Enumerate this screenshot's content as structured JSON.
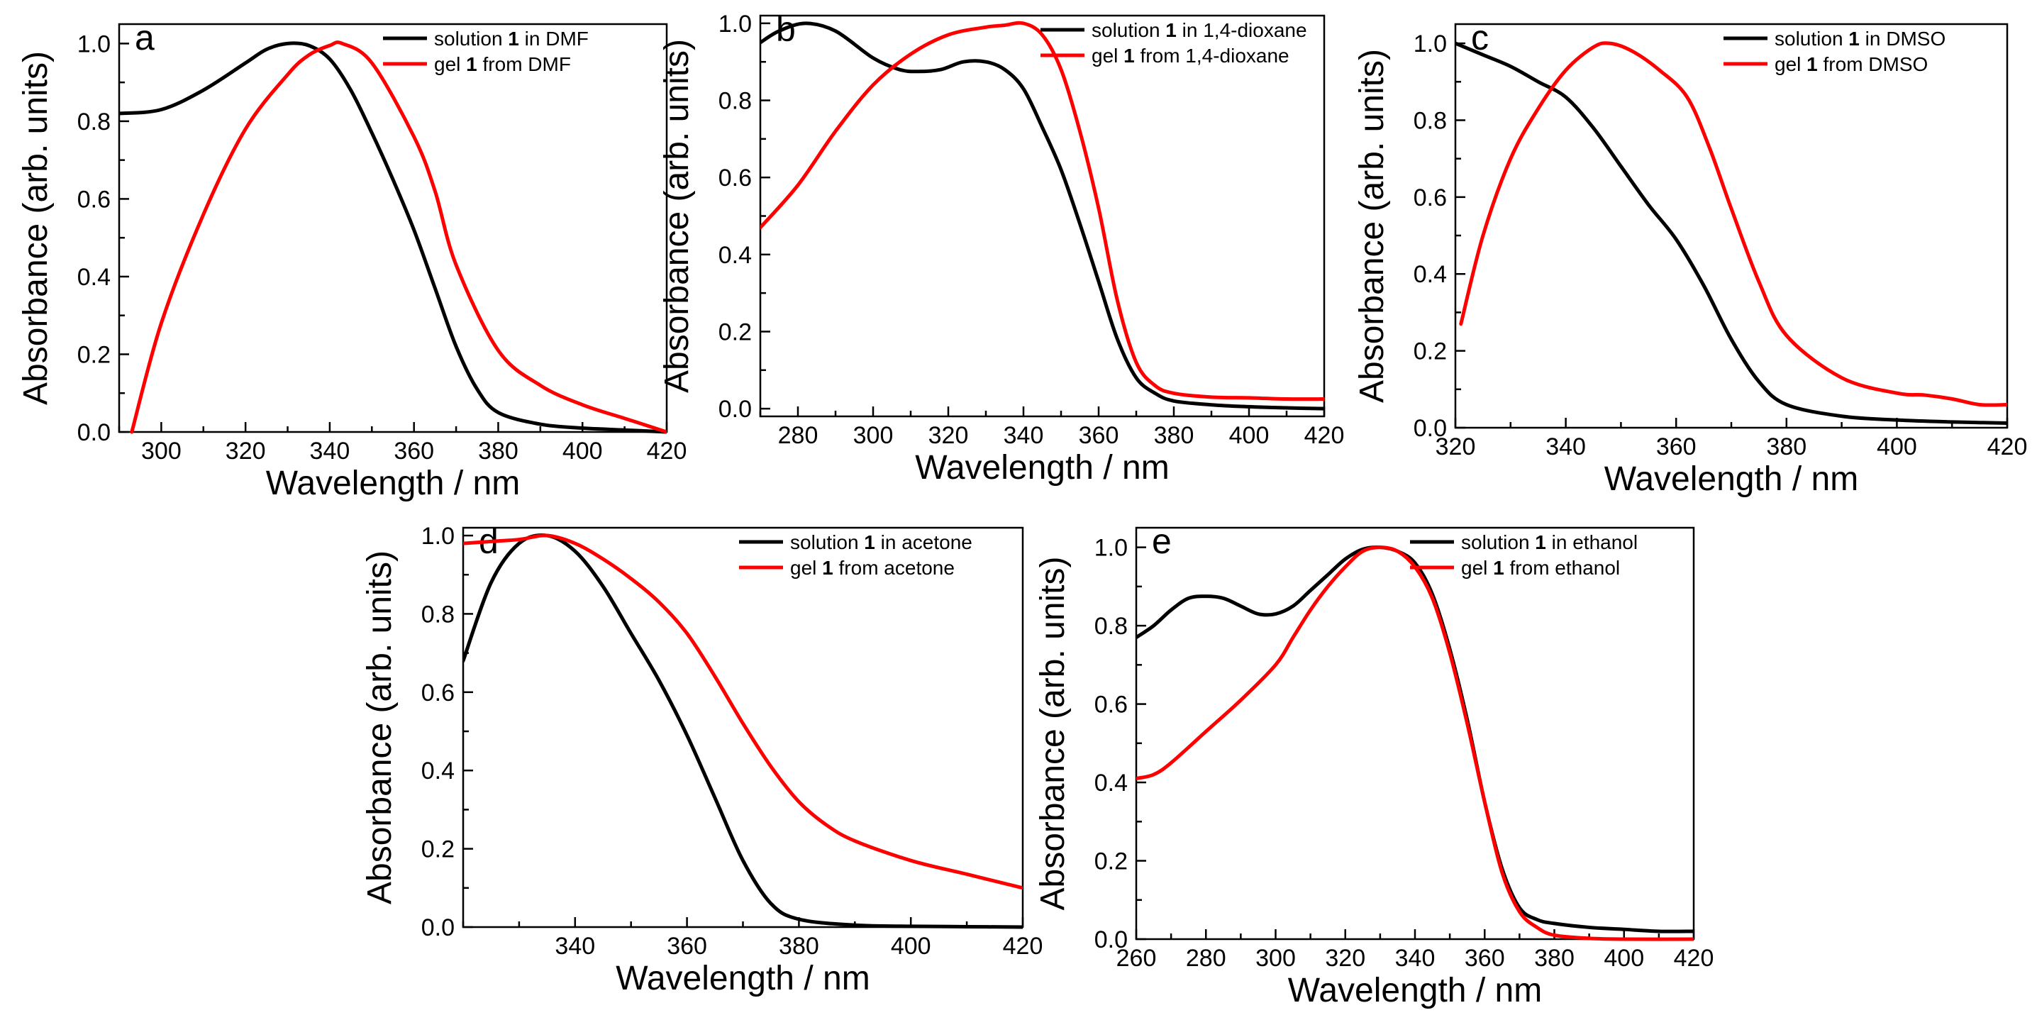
{
  "chart_data": [
    {
      "id": "a",
      "type": "line",
      "panel_label": "a",
      "xlabel": "Wavelength / nm",
      "ylabel": "Absorbance (arb. units)",
      "xlim": [
        290,
        420
      ],
      "ylim": [
        0,
        1.05
      ],
      "xticks": [
        300,
        320,
        340,
        360,
        380,
        400,
        420
      ],
      "xtick_labels": [
        "300",
        "320",
        "340",
        "360",
        "380",
        "400",
        "420"
      ],
      "yticks": [
        0,
        0.2,
        0.4,
        0.6,
        0.8,
        1.0
      ],
      "ytick_labels": [
        "0.0",
        "0.2",
        "0.4",
        "0.6",
        "0.8",
        "1.0"
      ],
      "legend_position": "top-right",
      "series": [
        {
          "name": "solution 1 in DMF",
          "legend_prefix": "solution ",
          "legend_bold": "1",
          "legend_suffix": " in DMF",
          "color": "#000000",
          "x": [
            290,
            300,
            310,
            320,
            325,
            330,
            335,
            340,
            345,
            350,
            355,
            360,
            365,
            370,
            375,
            380,
            390,
            400,
            410,
            420
          ],
          "y": [
            0.82,
            0.83,
            0.88,
            0.95,
            0.985,
            1.0,
            0.995,
            0.96,
            0.88,
            0.77,
            0.65,
            0.52,
            0.37,
            0.22,
            0.11,
            0.05,
            0.02,
            0.01,
            0.005,
            0.0
          ]
        },
        {
          "name": "gel 1 from DMF",
          "legend_prefix": "gel ",
          "legend_bold": "1",
          "legend_suffix": " from DMF",
          "color": "#ff0000",
          "x": [
            293,
            300,
            310,
            320,
            330,
            335,
            340,
            343,
            350,
            360,
            365,
            370,
            380,
            390,
            400,
            410,
            420
          ],
          "y": [
            0.0,
            0.28,
            0.56,
            0.78,
            0.92,
            0.97,
            0.995,
            1.0,
            0.95,
            0.76,
            0.62,
            0.43,
            0.21,
            0.12,
            0.07,
            0.035,
            0.0
          ]
        }
      ]
    },
    {
      "id": "b",
      "type": "line",
      "panel_label": "b",
      "xlabel": "Wavelength / nm",
      "ylabel": "Absorbance (arb. units)",
      "xlim": [
        270,
        420
      ],
      "ylim": [
        -0.02,
        1.02
      ],
      "xticks": [
        280,
        300,
        320,
        340,
        360,
        380,
        400,
        420
      ],
      "xtick_labels": [
        "280",
        "300",
        "320",
        "340",
        "360",
        "380",
        "400",
        "420"
      ],
      "yticks": [
        0,
        0.2,
        0.4,
        0.6,
        0.8,
        1.0
      ],
      "ytick_labels": [
        "0.0",
        "0.2",
        "0.4",
        "0.6",
        "0.8",
        "1.0"
      ],
      "legend_position": "top-right",
      "series": [
        {
          "name": "solution 1 in 1,4-dioxane",
          "legend_prefix": "solution ",
          "legend_bold": "1",
          "legend_suffix": " in 1,4-dioxane",
          "color": "#000000",
          "x": [
            270,
            275,
            282,
            290,
            300,
            307,
            312,
            318,
            324,
            330,
            335,
            340,
            345,
            350,
            355,
            360,
            365,
            370,
            375,
            380,
            390,
            400,
            410,
            420
          ],
          "y": [
            0.95,
            0.98,
            1.0,
            0.98,
            0.91,
            0.88,
            0.875,
            0.88,
            0.9,
            0.9,
            0.88,
            0.83,
            0.73,
            0.62,
            0.48,
            0.33,
            0.18,
            0.08,
            0.04,
            0.02,
            0.01,
            0.005,
            0.002,
            0.0
          ]
        },
        {
          "name": "gel 1 from 1,4-dioxane",
          "legend_prefix": "gel ",
          "legend_bold": "1",
          "legend_suffix": " from 1,4-dioxane",
          "color": "#ff0000",
          "x": [
            270,
            280,
            290,
            300,
            310,
            320,
            330,
            335,
            340,
            345,
            350,
            355,
            360,
            365,
            370,
            375,
            380,
            390,
            400,
            410,
            420
          ],
          "y": [
            0.47,
            0.58,
            0.72,
            0.84,
            0.92,
            0.97,
            0.99,
            0.995,
            1.0,
            0.97,
            0.88,
            0.72,
            0.52,
            0.28,
            0.12,
            0.06,
            0.04,
            0.03,
            0.028,
            0.025,
            0.025
          ]
        }
      ]
    },
    {
      "id": "c",
      "type": "line",
      "panel_label": "c",
      "xlabel": "Wavelength / nm",
      "ylabel": "Absorbance (arb. units)",
      "xlim": [
        320,
        420
      ],
      "ylim": [
        0,
        1.05
      ],
      "xticks": [
        320,
        340,
        360,
        380,
        400,
        420
      ],
      "xtick_labels": [
        "320",
        "340",
        "360",
        "380",
        "400",
        "420"
      ],
      "yticks": [
        0,
        0.2,
        0.4,
        0.6,
        0.8,
        1.0
      ],
      "ytick_labels": [
        "0.0",
        "0.2",
        "0.4",
        "0.6",
        "0.8",
        "1.0"
      ],
      "legend_position": "top-right",
      "series": [
        {
          "name": "solution 1 in DMSO",
          "legend_prefix": "solution ",
          "legend_bold": "1",
          "legend_suffix": " in DMSO",
          "color": "#000000",
          "x": [
            320,
            325,
            330,
            335,
            340,
            345,
            350,
            355,
            360,
            365,
            370,
            375,
            380,
            390,
            400,
            410,
            420
          ],
          "y": [
            1.0,
            0.97,
            0.94,
            0.9,
            0.86,
            0.78,
            0.68,
            0.58,
            0.49,
            0.37,
            0.23,
            0.12,
            0.06,
            0.03,
            0.02,
            0.015,
            0.012
          ]
        },
        {
          "name": "gel 1 from DMSO",
          "legend_prefix": "gel ",
          "legend_bold": "1",
          "legend_suffix": " from DMSO",
          "color": "#ff0000",
          "x": [
            321,
            325,
            330,
            335,
            340,
            345,
            348,
            352,
            357,
            362,
            366,
            370,
            375,
            380,
            390,
            400,
            405,
            410,
            415,
            420
          ],
          "y": [
            0.27,
            0.5,
            0.7,
            0.83,
            0.93,
            0.99,
            1.0,
            0.98,
            0.93,
            0.86,
            0.73,
            0.57,
            0.38,
            0.24,
            0.13,
            0.09,
            0.085,
            0.075,
            0.06,
            0.06
          ]
        }
      ]
    },
    {
      "id": "d",
      "type": "line",
      "panel_label": "d",
      "xlabel": "Wavelength / nm",
      "ylabel": "Absorbance (arb. units)",
      "xlim": [
        320,
        420
      ],
      "ylim": [
        0,
        1.02
      ],
      "xticks": [
        340,
        360,
        380,
        400,
        420
      ],
      "xtick_labels": [
        "340",
        "360",
        "380",
        "400",
        "420"
      ],
      "yticks": [
        0,
        0.2,
        0.4,
        0.6,
        0.8,
        1.0
      ],
      "ytick_labels": [
        "0.0",
        "0.2",
        "0.4",
        "0.6",
        "0.8",
        "1.0"
      ],
      "legend_position": "top-right",
      "series": [
        {
          "name": "solution 1 in acetone",
          "legend_prefix": "solution ",
          "legend_bold": "1",
          "legend_suffix": " in acetone",
          "color": "#000000",
          "x": [
            320,
            325,
            330,
            335,
            340,
            345,
            350,
            355,
            360,
            365,
            370,
            375,
            380,
            390,
            400,
            410,
            420
          ],
          "y": [
            0.68,
            0.88,
            0.98,
            1.0,
            0.96,
            0.87,
            0.75,
            0.63,
            0.49,
            0.33,
            0.17,
            0.06,
            0.02,
            0.005,
            0.002,
            0.001,
            0.0
          ]
        },
        {
          "name": "gel 1 from acetone",
          "legend_prefix": "gel ",
          "legend_bold": "1",
          "legend_suffix": " from acetone",
          "color": "#ff0000",
          "x": [
            320,
            325,
            330,
            335,
            340,
            345,
            350,
            355,
            360,
            365,
            370,
            375,
            380,
            385,
            390,
            400,
            410,
            420
          ],
          "y": [
            0.98,
            0.985,
            0.99,
            1.0,
            0.98,
            0.94,
            0.89,
            0.83,
            0.75,
            0.64,
            0.52,
            0.41,
            0.32,
            0.26,
            0.22,
            0.17,
            0.135,
            0.1
          ]
        }
      ]
    },
    {
      "id": "e",
      "type": "line",
      "panel_label": "e",
      "xlabel": "Wavelength / nm",
      "ylabel": "Absorbance (arb. units)",
      "xlim": [
        260,
        420
      ],
      "ylim": [
        0,
        1.05
      ],
      "xticks": [
        260,
        280,
        300,
        320,
        340,
        360,
        380,
        400,
        420
      ],
      "xtick_labels": [
        "260",
        "280",
        "300",
        "320",
        "340",
        "360",
        "380",
        "400",
        "420"
      ],
      "yticks": [
        0,
        0.2,
        0.4,
        0.6,
        0.8,
        1.0
      ],
      "ytick_labels": [
        "0.0",
        "0.2",
        "0.4",
        "0.6",
        "0.8",
        "1.0"
      ],
      "legend_position": "top-right",
      "series": [
        {
          "name": "solution 1 in ethanol",
          "legend_prefix": "solution ",
          "legend_bold": "1",
          "legend_suffix": " in ethanol",
          "color": "#000000",
          "x": [
            260,
            265,
            270,
            275,
            280,
            285,
            290,
            295,
            300,
            305,
            310,
            315,
            320,
            325,
            330,
            335,
            340,
            345,
            350,
            355,
            360,
            365,
            370,
            375,
            380,
            390,
            400,
            410,
            420
          ],
          "y": [
            0.77,
            0.8,
            0.84,
            0.87,
            0.875,
            0.87,
            0.85,
            0.83,
            0.83,
            0.85,
            0.89,
            0.93,
            0.97,
            0.995,
            1.0,
            0.99,
            0.96,
            0.88,
            0.74,
            0.56,
            0.35,
            0.18,
            0.08,
            0.05,
            0.04,
            0.03,
            0.025,
            0.02,
            0.02
          ]
        },
        {
          "name": "gel 1 from ethanol",
          "legend_prefix": "gel ",
          "legend_bold": "1",
          "legend_suffix": " from ethanol",
          "color": "#ff0000",
          "x": [
            260,
            265,
            270,
            280,
            290,
            300,
            305,
            310,
            315,
            320,
            325,
            330,
            335,
            340,
            345,
            350,
            355,
            360,
            365,
            370,
            375,
            380,
            390,
            400,
            420
          ],
          "y": [
            0.41,
            0.42,
            0.45,
            0.53,
            0.61,
            0.7,
            0.77,
            0.84,
            0.9,
            0.95,
            0.99,
            1.0,
            0.99,
            0.95,
            0.87,
            0.73,
            0.55,
            0.35,
            0.17,
            0.07,
            0.03,
            0.01,
            0.002,
            0.0,
            0.0
          ]
        }
      ]
    }
  ]
}
